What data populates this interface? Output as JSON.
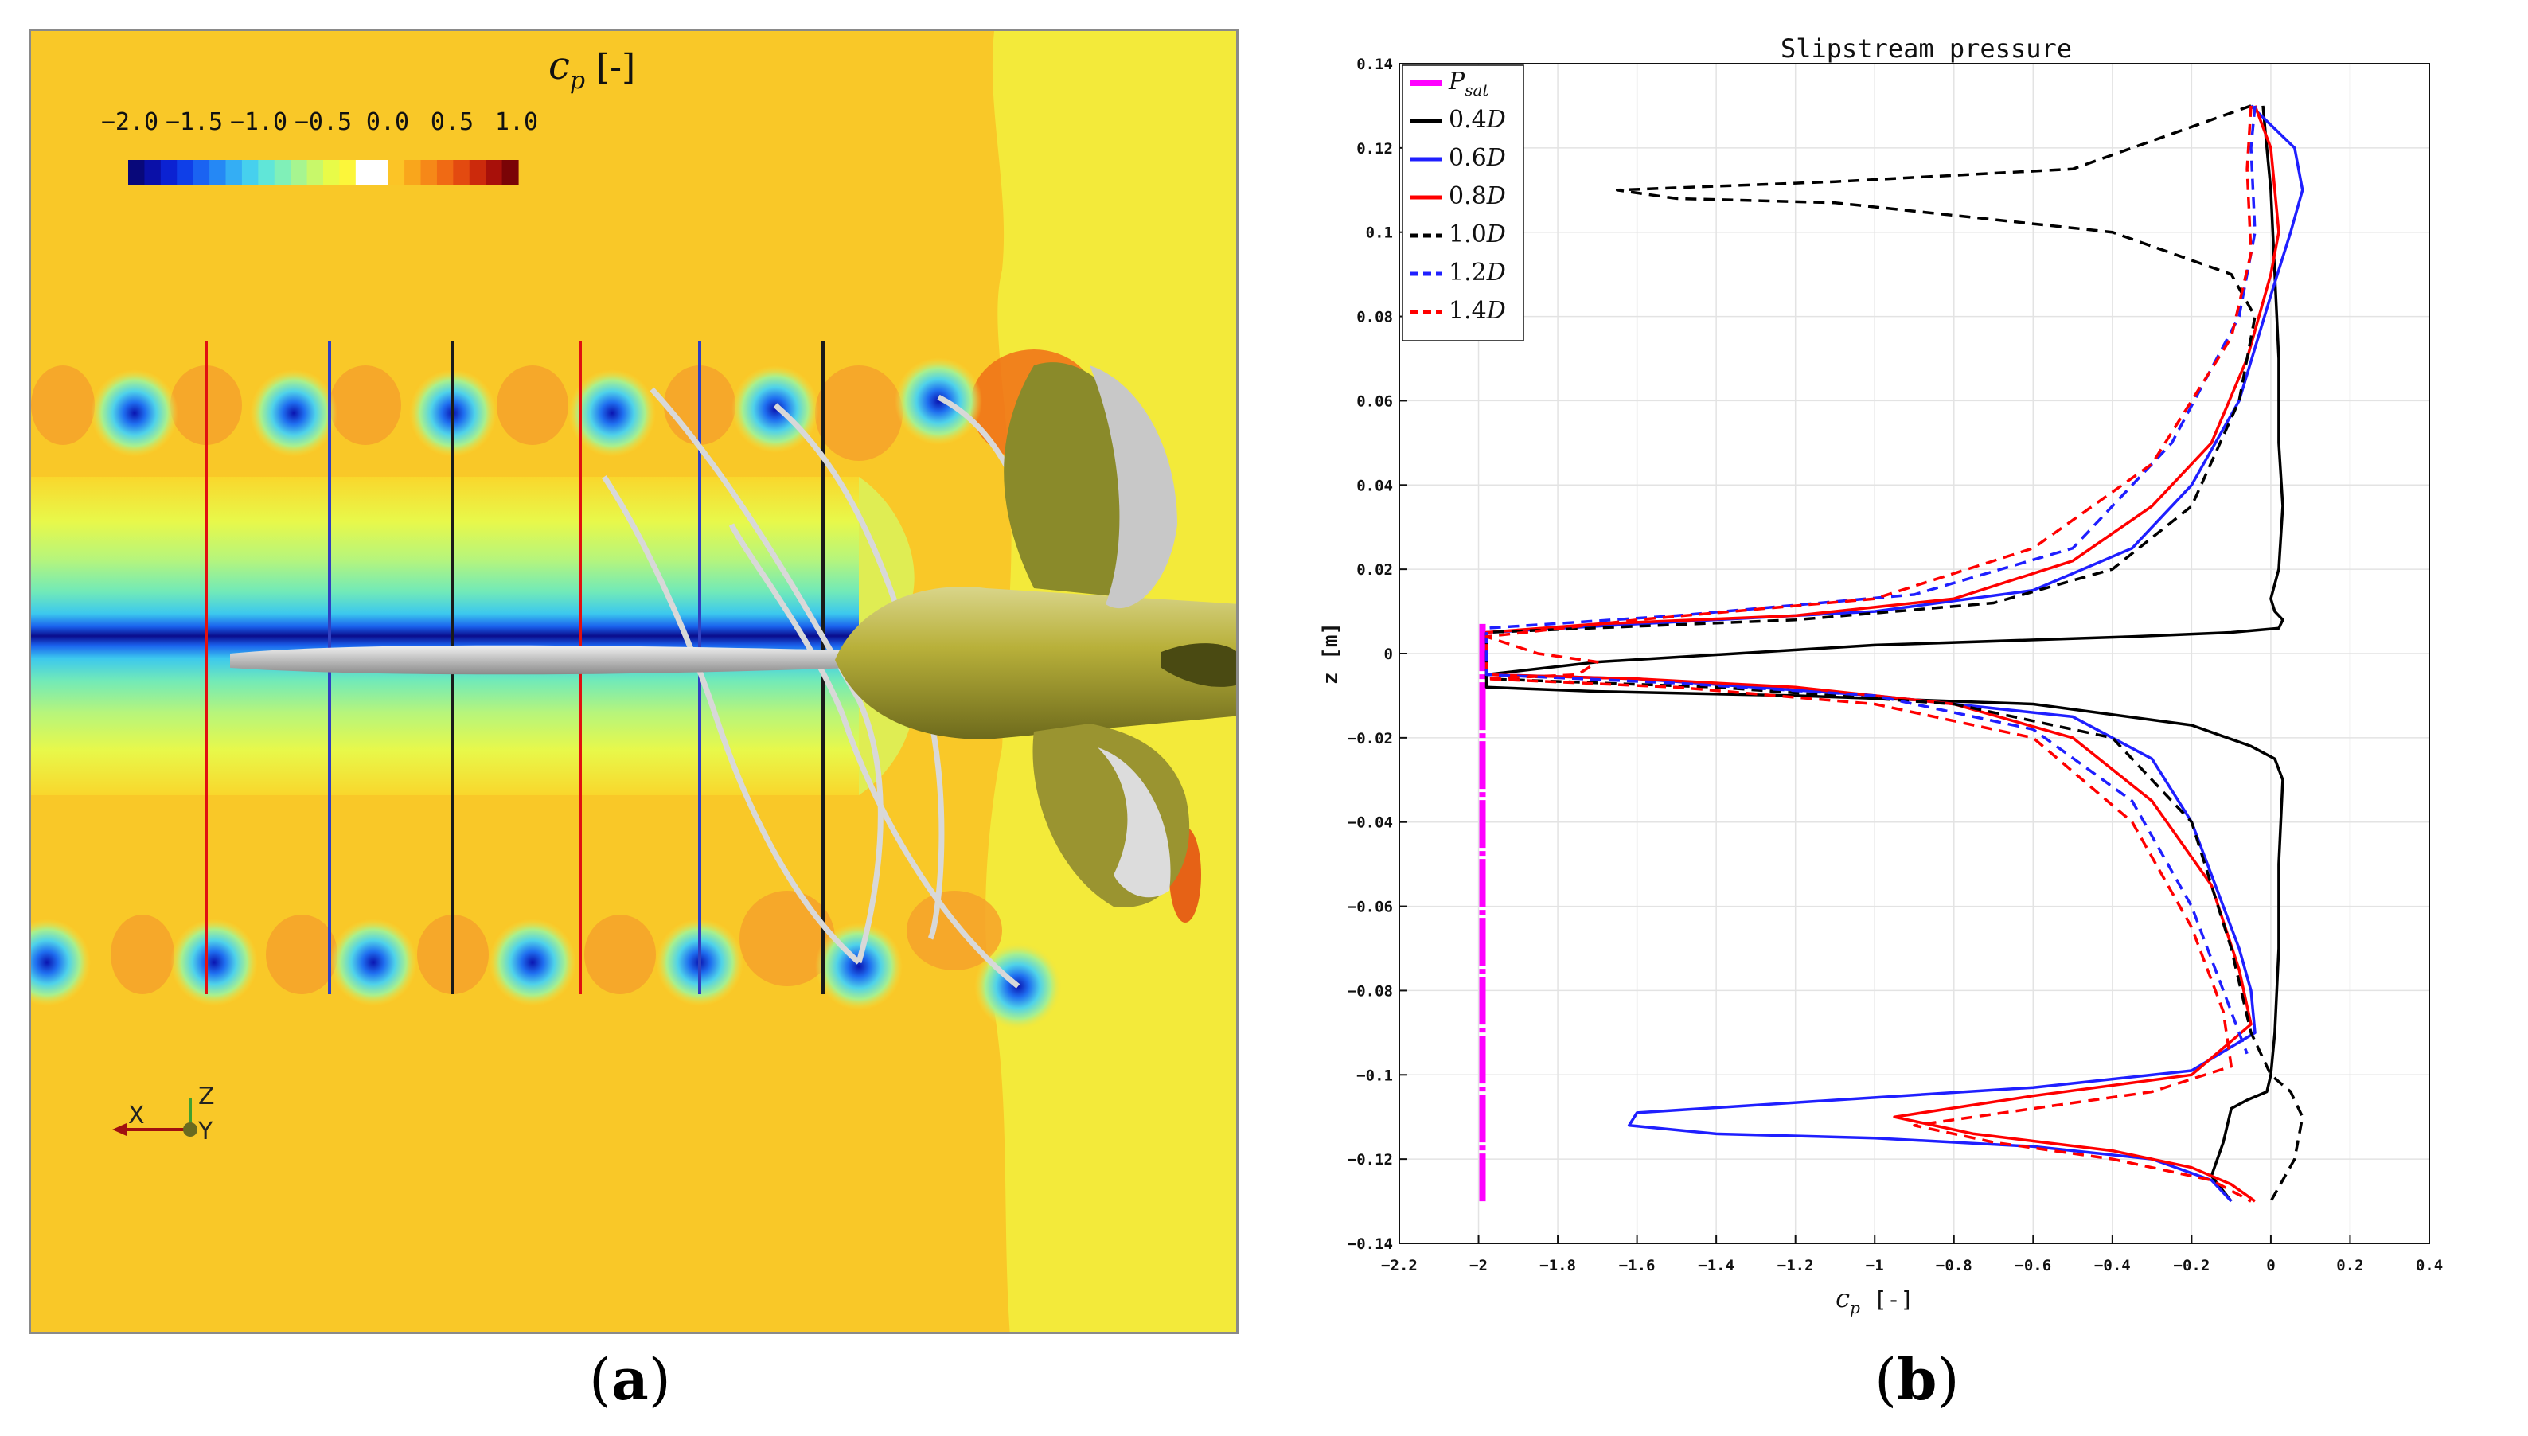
{
  "panel_a": {
    "colorbar_title": "c",
    "colorbar_title_sub": "p",
    "colorbar_unit": "[-]",
    "colorbar_ticks": [
      "−2.0",
      "−1.5",
      "−1.0",
      "−0.5",
      "0.0",
      "0.5",
      "1.0"
    ],
    "colorbar_colors": [
      "#08087a",
      "#0a10a8",
      "#0b22d2",
      "#0f3fe8",
      "#1a63f2",
      "#2588f5",
      "#34aef4",
      "#46d0ee",
      "#60e6d8",
      "#80f0b8",
      "#a6f590",
      "#c8f86a",
      "#e8fb48",
      "#fcf63a",
      "#ffffff",
      "#ffffff",
      "#fcc426",
      "#f9a61c",
      "#f68818",
      "#f06a14",
      "#e34a10",
      "#cc2a0c",
      "#a8100a",
      "#7a0406"
    ],
    "axis_labels": {
      "z": "Z",
      "x": "X",
      "y": "Y"
    },
    "letter_open": "(",
    "letter": "a",
    "letter_close": ")"
  },
  "chart_data": {
    "type": "line",
    "title": "Slipstream pressure",
    "xlabel": "c",
    "xlabel_sub": "p",
    "xlabel_unit": "[-]",
    "ylabel": "z [m]",
    "xlim": [
      -2.2,
      0.4
    ],
    "ylim": [
      -0.14,
      0.14
    ],
    "xticks": [
      -2.2,
      -2,
      -1.8,
      -1.6,
      -1.4,
      -1.2,
      -1,
      -0.8,
      -0.6,
      -0.4,
      -0.2,
      0,
      0.2,
      0.4
    ],
    "xtick_labels": [
      "−2.2",
      "−2",
      "−1.8",
      "−1.6",
      "−1.4",
      "−1.2",
      "−1",
      "−0.8",
      "−0.6",
      "−0.4",
      "−0.2",
      "0",
      "0.2",
      "0.4"
    ],
    "yticks": [
      -0.14,
      -0.12,
      -0.1,
      -0.08,
      -0.06,
      -0.04,
      -0.02,
      0,
      0.02,
      0.04,
      0.06,
      0.08,
      0.1,
      0.12,
      0.14
    ],
    "ytick_labels": [
      "−0.14",
      "−0.12",
      "−0.1",
      "−0.08",
      "−0.06",
      "−0.04",
      "−0.02",
      "0",
      "0.02",
      "0.04",
      "0.06",
      "0.08",
      "0.1",
      "0.12",
      "0.14"
    ],
    "grid": true,
    "legend_position": "top-left",
    "series": [
      {
        "name": "P",
        "sub": "sat",
        "color": "#ff00ff",
        "dash": "solid",
        "width": 8,
        "x": [
          -1.99,
          -1.99
        ],
        "z": [
          -0.13,
          0.007
        ]
      },
      {
        "name": "0.4D",
        "color": "#000000",
        "dash": "solid",
        "width": 3.5,
        "x": [
          -0.02,
          -0.01,
          0.0,
          0.01,
          0.02,
          0.02,
          0.03,
          0.02,
          0.0,
          0.01,
          0.03,
          0.02,
          -0.1,
          -0.35,
          -1.0,
          -1.7,
          -1.98,
          -1.98,
          -1.7,
          -1.2,
          -0.6,
          -0.2,
          -0.05,
          0.01,
          0.03,
          0.02,
          0.02,
          0.01,
          0.0,
          -0.01,
          -0.06,
          -0.1,
          -0.12,
          -0.15,
          -0.1
        ],
        "z": [
          0.13,
          0.12,
          0.11,
          0.09,
          0.07,
          0.05,
          0.035,
          0.02,
          0.013,
          0.01,
          0.008,
          0.006,
          0.005,
          0.004,
          0.002,
          -0.002,
          -0.005,
          -0.008,
          -0.009,
          -0.01,
          -0.012,
          -0.017,
          -0.022,
          -0.025,
          -0.03,
          -0.05,
          -0.07,
          -0.09,
          -0.1,
          -0.104,
          -0.106,
          -0.108,
          -0.116,
          -0.124,
          -0.13
        ]
      },
      {
        "name": "0.6D",
        "color": "#1f1fff",
        "dash": "solid",
        "width": 3.5,
        "x": [
          -0.05,
          0.06,
          0.08,
          0.05,
          0.0,
          -0.08,
          -0.2,
          -0.35,
          -0.6,
          -1.0,
          -1.6,
          -1.98,
          -1.98,
          -1.6,
          -1.0,
          -0.5,
          -0.3,
          -0.2,
          -0.12,
          -0.08,
          -0.05,
          -0.04,
          -0.2,
          -0.6,
          -1.1,
          -1.6,
          -1.62,
          -1.4,
          -1.0,
          -0.6,
          -0.3,
          -0.15,
          -0.1
        ],
        "z": [
          0.13,
          0.12,
          0.11,
          0.1,
          0.085,
          0.06,
          0.04,
          0.025,
          0.015,
          0.01,
          0.007,
          0.005,
          -0.005,
          -0.006,
          -0.01,
          -0.015,
          -0.025,
          -0.04,
          -0.06,
          -0.07,
          -0.08,
          -0.09,
          -0.099,
          -0.103,
          -0.106,
          -0.109,
          -0.112,
          -0.114,
          -0.115,
          -0.117,
          -0.12,
          -0.125,
          -0.13
        ]
      },
      {
        "name": "0.8D",
        "color": "#ff0000",
        "dash": "solid",
        "width": 3.5,
        "x": [
          -0.04,
          0.0,
          0.02,
          0.0,
          -0.06,
          -0.15,
          -0.3,
          -0.5,
          -0.8,
          -1.2,
          -1.7,
          -1.98,
          -1.98,
          -1.6,
          -1.2,
          -0.8,
          -0.5,
          -0.3,
          -0.15,
          -0.08,
          -0.05,
          -0.2,
          -0.6,
          -0.95,
          -0.75,
          -0.4,
          -0.2,
          -0.1,
          -0.04
        ],
        "z": [
          0.13,
          0.12,
          0.1,
          0.09,
          0.07,
          0.05,
          0.035,
          0.022,
          0.013,
          0.009,
          0.007,
          0.005,
          -0.005,
          -0.006,
          -0.008,
          -0.012,
          -0.02,
          -0.035,
          -0.055,
          -0.075,
          -0.088,
          -0.1,
          -0.105,
          -0.11,
          -0.114,
          -0.118,
          -0.122,
          -0.126,
          -0.13
        ]
      },
      {
        "name": "1.0D",
        "color": "#000000",
        "dash": "dashed",
        "width": 3.5,
        "x": [
          -0.05,
          -0.5,
          -1.1,
          -1.65,
          -1.5,
          -1.1,
          -0.4,
          -0.1,
          -0.04,
          -0.08,
          -0.2,
          -0.4,
          -0.7,
          -1.2,
          -1.98,
          -1.98,
          -1.4,
          -0.8,
          -0.4,
          -0.2,
          -0.1,
          -0.05,
          0.0,
          0.05,
          0.08,
          0.06,
          0.0
        ],
        "z": [
          0.13,
          0.115,
          0.112,
          0.11,
          0.108,
          0.107,
          0.1,
          0.09,
          0.08,
          0.06,
          0.035,
          0.02,
          0.012,
          0.008,
          0.005,
          -0.006,
          -0.008,
          -0.012,
          -0.02,
          -0.04,
          -0.07,
          -0.09,
          -0.1,
          -0.104,
          -0.11,
          -0.12,
          -0.13
        ]
      },
      {
        "name": "1.2D",
        "color": "#1f1fff",
        "dash": "dashed",
        "width": 3.5,
        "x": [
          -0.04,
          -0.05,
          -0.04,
          -0.08,
          -0.25,
          -0.5,
          -0.9,
          -1.5,
          -1.98,
          -1.98,
          -1.5,
          -1.0,
          -0.6,
          -0.35,
          -0.2,
          -0.12,
          -0.08,
          -0.06
        ],
        "z": [
          0.13,
          0.12,
          0.1,
          0.08,
          0.05,
          0.025,
          0.014,
          0.009,
          0.006,
          -0.005,
          -0.007,
          -0.01,
          -0.018,
          -0.035,
          -0.06,
          -0.08,
          -0.09,
          -0.095
        ]
      },
      {
        "name": "1.4D",
        "color": "#ff0000",
        "dash": "dashed",
        "width": 3.5,
        "x": [
          -0.05,
          -0.06,
          -0.05,
          -0.1,
          -0.3,
          -0.6,
          -1.0,
          -1.6,
          -1.98,
          -1.85,
          -1.7,
          -1.75,
          -1.98,
          -1.5,
          -1.0,
          -0.6,
          -0.35,
          -0.2,
          -0.12,
          -0.1,
          -0.3,
          -0.6,
          -0.9,
          -0.7,
          -0.4,
          -0.15,
          -0.05
        ],
        "z": [
          0.13,
          0.115,
          0.095,
          0.075,
          0.045,
          0.025,
          0.013,
          0.008,
          0.004,
          0.0,
          -0.002,
          -0.005,
          -0.006,
          -0.008,
          -0.012,
          -0.02,
          -0.04,
          -0.065,
          -0.085,
          -0.098,
          -0.104,
          -0.108,
          -0.112,
          -0.116,
          -0.12,
          -0.125,
          -0.13
        ]
      }
    ]
  },
  "panel_b_letter": {
    "open": "(",
    "letter": "b",
    "close": ")"
  }
}
